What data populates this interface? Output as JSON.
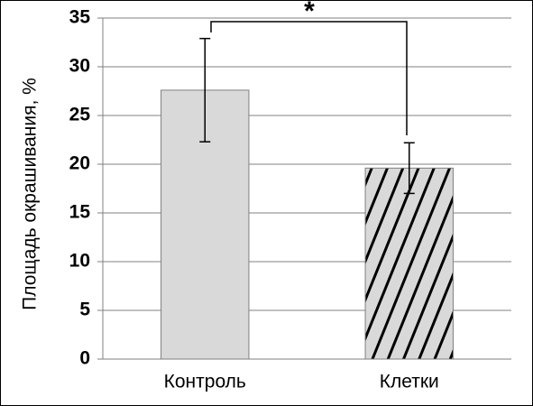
{
  "chart_data": {
    "type": "bar",
    "y_label": "Площадь окрашивания, %",
    "categories": [
      "Контроль",
      "Клетки"
    ],
    "values": [
      27.6,
      19.6
    ],
    "errors": [
      5.3,
      2.6
    ],
    "color": "#d9d9d9",
    "hatch": [
      false,
      true
    ],
    "ylim": [
      0,
      35
    ],
    "yticks": [
      0,
      5,
      10,
      15,
      20,
      25,
      30,
      35
    ],
    "grid": true,
    "annotation": "*"
  }
}
